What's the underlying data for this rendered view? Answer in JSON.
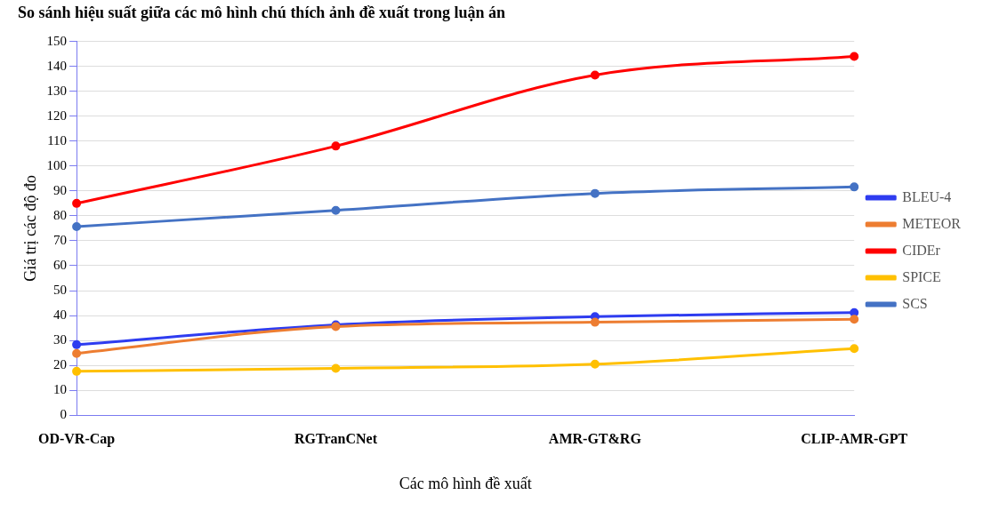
{
  "chart_data": {
    "type": "line",
    "title": "So sánh hiệu suất giữa các mô hình chú thích ảnh đề xuất trong luận án",
    "xlabel": "Các mô hình đề xuất",
    "ylabel": "Giá trị các độ đo",
    "categories": [
      "OD-VR-Cap",
      "RGTranCNet",
      "AMR-GT&RG",
      "CLIP-AMR-GPT"
    ],
    "series": [
      {
        "name": "BLEU-4",
        "color": "#2e3cf0",
        "values": [
          28.3,
          36.3,
          39.6,
          41.2
        ]
      },
      {
        "name": "METEOR",
        "color": "#ed7d31",
        "values": [
          24.8,
          35.6,
          37.3,
          38.5
        ]
      },
      {
        "name": "CIDEr",
        "color": "#ff0000",
        "values": [
          85,
          108,
          136.5,
          144
        ]
      },
      {
        "name": "SPICE",
        "color": "#ffc000",
        "values": [
          17.6,
          18.8,
          20.5,
          26.7
        ]
      },
      {
        "name": "SCS",
        "color": "#4472c4",
        "values": [
          75.7,
          82.2,
          89,
          91.6
        ]
      }
    ],
    "ylim": [
      0,
      150
    ],
    "yticks": [
      0,
      10,
      20,
      30,
      40,
      50,
      60,
      70,
      80,
      90,
      100,
      110,
      120,
      130,
      140,
      150
    ],
    "grid": "y",
    "legend": "right",
    "marker": "circle",
    "line_style": "solid"
  }
}
